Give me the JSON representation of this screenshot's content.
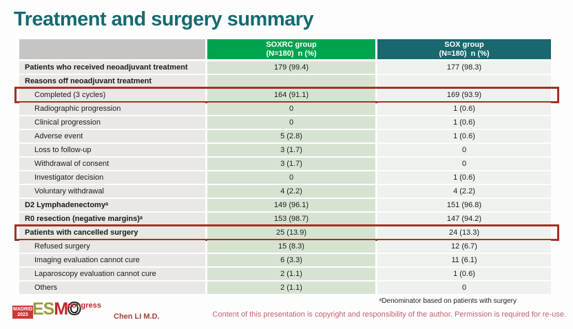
{
  "slide": {
    "title": "Treatment and surgery summary",
    "footnote": "ᵃDenominator based on patients with surgery",
    "copyright": "Content of this presentation is copyright and responsibility of the author.  Permission is required for re-use.",
    "author": "Chen LI M.D."
  },
  "logo": {
    "madrid_line1": "MADRID",
    "madrid_line2": "2023",
    "es": "ES",
    "m": "M",
    "o": "O",
    "congress": "congress"
  },
  "colors": {
    "title_teal": "#166a70",
    "soxrc_header_green": "#00a44f",
    "sox_header_teal": "#19686d",
    "label_cell_gray": "#e9e8e5",
    "soxrc_cell_green": "#d7e3d1",
    "sox_cell_light": "#eef1ed",
    "highlight_red": "#a53125",
    "copyright_rose": "#c4606e",
    "author_red": "#a43d3c",
    "esmo_olive": "#9a9b40",
    "esmo_red": "#c0272d",
    "madrid_badge_red": "#cb3a35"
  },
  "table": {
    "soxrc_header": "SOXRC group\n(N=180)  n (%)",
    "sox_header": "SOX group\n(N=180)  n (%)",
    "rows": [
      {
        "label": "Patients who received neoadjuvant treatment",
        "bold": true,
        "indent": false,
        "highlight": false,
        "soxrc": "179 (99.4)",
        "sox": "177 (98.3)"
      },
      {
        "label": "Reasons off neoadjuvant treatment",
        "bold": true,
        "indent": false,
        "highlight": false,
        "soxrc": "",
        "sox": ""
      },
      {
        "label": "Completed (3 cycles)",
        "bold": false,
        "indent": true,
        "highlight": true,
        "soxrc": "164 (91.1)",
        "sox": "169 (93.9)"
      },
      {
        "label": "Radiographic progression",
        "bold": false,
        "indent": true,
        "highlight": false,
        "soxrc": "0",
        "sox": "1 (0.6)"
      },
      {
        "label": "Clinical progression",
        "bold": false,
        "indent": true,
        "highlight": false,
        "soxrc": "0",
        "sox": "1 (0.6)"
      },
      {
        "label": "Adverse event",
        "bold": false,
        "indent": true,
        "highlight": false,
        "soxrc": "5 (2.8)",
        "sox": "1 (0.6)"
      },
      {
        "label": "Loss to follow-up",
        "bold": false,
        "indent": true,
        "highlight": false,
        "soxrc": "3 (1.7)",
        "sox": "0"
      },
      {
        "label": "Withdrawal of consent",
        "bold": false,
        "indent": true,
        "highlight": false,
        "soxrc": "3 (1.7)",
        "sox": "0"
      },
      {
        "label": "Investigator decision",
        "bold": false,
        "indent": true,
        "highlight": false,
        "soxrc": "0",
        "sox": "1 (0.6)"
      },
      {
        "label": "Voluntary withdrawal",
        "bold": false,
        "indent": true,
        "highlight": false,
        "soxrc": "4 (2.2)",
        "sox": "4 (2.2)"
      },
      {
        "label": "D2 Lymphadenectomyᵃ",
        "bold": true,
        "indent": false,
        "highlight": false,
        "soxrc": "149 (96.1)",
        "sox": "151 (96.8)"
      },
      {
        "label": "R0 resection (negative margins)ᵃ",
        "bold": true,
        "indent": false,
        "highlight": false,
        "soxrc": "153 (98.7)",
        "sox": "147 (94.2)"
      },
      {
        "label": "Patients with cancelled surgery",
        "bold": true,
        "indent": false,
        "highlight": true,
        "soxrc": "25 (13.9)",
        "sox": "24 (13.3)"
      },
      {
        "label": "Refused surgery",
        "bold": false,
        "indent": true,
        "highlight": false,
        "soxrc": "15 (8.3)",
        "sox": "12 (6.7)"
      },
      {
        "label": "Imaging evaluation cannot cure",
        "bold": false,
        "indent": true,
        "highlight": false,
        "soxrc": "6 (3.3)",
        "sox": "11 (6.1)"
      },
      {
        "label": "Laparoscopy evaluation cannot cure",
        "bold": false,
        "indent": true,
        "highlight": false,
        "soxrc": "2 (1.1)",
        "sox": "1 (0.6)"
      },
      {
        "label": "Others",
        "bold": false,
        "indent": true,
        "highlight": false,
        "soxrc": "2 (1.1)",
        "sox": "0"
      }
    ]
  }
}
